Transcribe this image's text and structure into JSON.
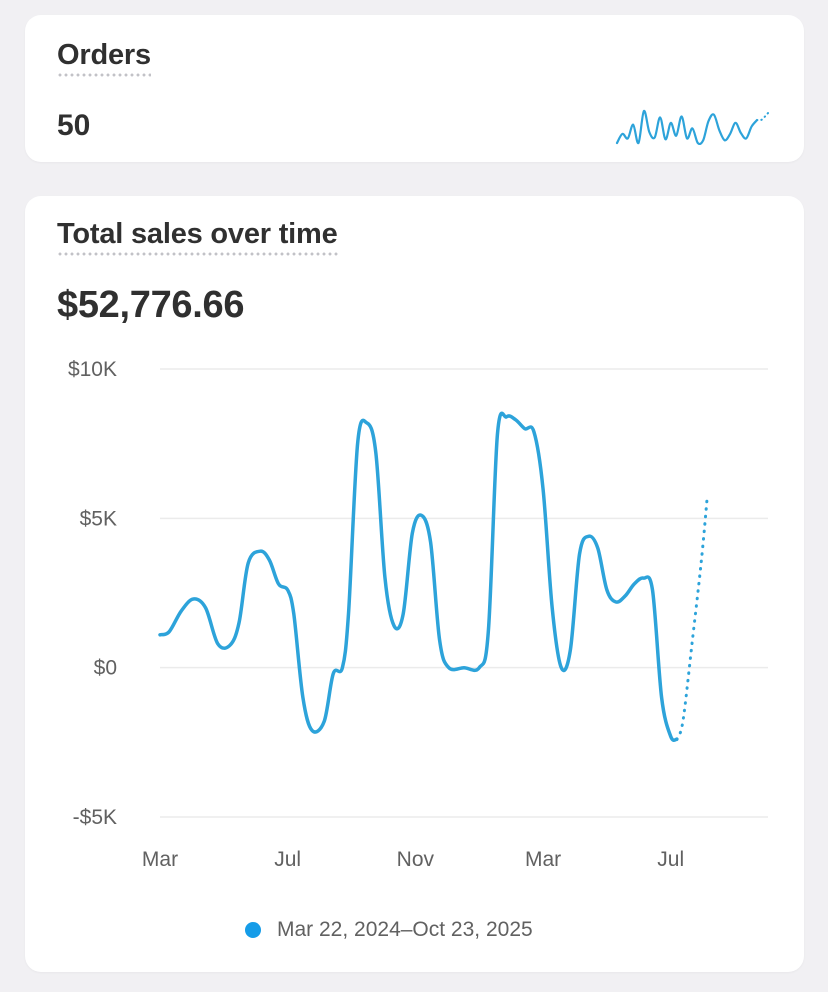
{
  "orders_card": {
    "title": "Orders",
    "value": "50"
  },
  "sales_card": {
    "title": "Total sales over time",
    "value": "$52,776.66",
    "legend_label": "Mar 22, 2024–Oct 23, 2025"
  },
  "colors": {
    "series": "#2da3da",
    "legend_dot": "#159ce8",
    "grid": "#ebebeb"
  },
  "chart_data": {
    "type": "line",
    "y_tick_labels": [
      "$10K",
      "$5K",
      "$0",
      "-$5K"
    ],
    "y_ticks": [
      10000,
      5000,
      0,
      -5000
    ],
    "ylim": [
      -5000,
      10000
    ],
    "x_tick_labels": [
      "Mar",
      "Jul",
      "Nov",
      "Mar",
      "Jul"
    ],
    "x_tick_positions": [
      0,
      4.2,
      8.4,
      12.6,
      16.8
    ],
    "xlim": [
      0,
      20
    ],
    "grid": true,
    "legend_position": "bottom",
    "series": [
      {
        "name": "Mar 22, 2024–Oct 23, 2025",
        "points": [
          [
            0.0,
            1100
          ],
          [
            0.3,
            1200
          ],
          [
            0.7,
            1900
          ],
          [
            1.1,
            2300
          ],
          [
            1.5,
            2000
          ],
          [
            1.9,
            800
          ],
          [
            2.3,
            750
          ],
          [
            2.6,
            1500
          ],
          [
            2.9,
            3500
          ],
          [
            3.3,
            3900
          ],
          [
            3.6,
            3600
          ],
          [
            3.9,
            2800
          ],
          [
            4.2,
            2600
          ],
          [
            4.4,
            1800
          ],
          [
            4.7,
            -1000
          ],
          [
            5.0,
            -2100
          ],
          [
            5.4,
            -1800
          ],
          [
            5.7,
            -200
          ],
          [
            6.0,
            0
          ],
          [
            6.2,
            1800
          ],
          [
            6.5,
            7500
          ],
          [
            6.8,
            8200
          ],
          [
            7.1,
            7200
          ],
          [
            7.4,
            3000
          ],
          [
            7.7,
            1400
          ],
          [
            8.0,
            1800
          ],
          [
            8.3,
            4500
          ],
          [
            8.6,
            5100
          ],
          [
            8.9,
            4200
          ],
          [
            9.2,
            900
          ],
          [
            9.5,
            0
          ],
          [
            10.0,
            0
          ],
          [
            10.5,
            0
          ],
          [
            10.8,
            1200
          ],
          [
            11.1,
            7800
          ],
          [
            11.4,
            8400
          ],
          [
            11.7,
            8300
          ],
          [
            12.0,
            8000
          ],
          [
            12.3,
            7900
          ],
          [
            12.6,
            6000
          ],
          [
            12.9,
            2000
          ],
          [
            13.2,
            0
          ],
          [
            13.5,
            600
          ],
          [
            13.8,
            3800
          ],
          [
            14.1,
            4400
          ],
          [
            14.4,
            4000
          ],
          [
            14.7,
            2600
          ],
          [
            15.0,
            2200
          ],
          [
            15.3,
            2400
          ],
          [
            15.6,
            2800
          ],
          [
            15.9,
            3000
          ],
          [
            16.2,
            2600
          ],
          [
            16.5,
            -1000
          ],
          [
            16.8,
            -2300
          ],
          [
            17.0,
            -2400
          ]
        ]
      },
      {
        "style": "dotted",
        "points": [
          [
            17.0,
            -2400
          ],
          [
            17.2,
            -1800
          ],
          [
            17.5,
            800
          ],
          [
            17.8,
            3500
          ],
          [
            18.0,
            5700
          ]
        ]
      }
    ]
  },
  "sparkline": {
    "values": [
      1,
      2,
      1.5,
      3,
      1,
      4.5,
      2.2,
      1.6,
      3.8,
      1.4,
      3.2,
      1.8,
      3.9,
      1.5,
      2.6,
      1,
      1.3,
      3.4,
      4.1,
      2.4,
      1.3,
      2,
      3.2,
      2.1,
      1.5,
      2.8,
      3.5
    ],
    "trail": [
      3.5,
      3.9,
      4.4
    ]
  }
}
